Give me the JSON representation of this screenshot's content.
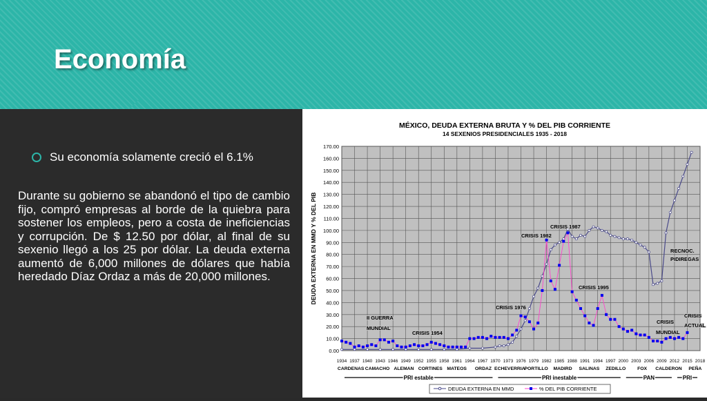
{
  "slide": {
    "title": "Economía",
    "bullet": "Su economía solamente creció el 6.1%",
    "body": "Durante su gobierno se abandonó el tipo de cambio fijo, compró empresas al borde de la quiebra para sostener los empleos, pero a costa de ineficiencias y corrupción. De $ 12.50 por dólar, al final de su sexenio llegó a los 25 por dólar. La deuda externa aumentó de 6,000 millones de dólares que había heredado Díaz Ordaz a más de 20,000 millones."
  },
  "colors": {
    "header": "#2cb5a8",
    "dark": "#2b2b2b",
    "plot_bg": "#c0c0c0",
    "series_debt": "#4a4a8a",
    "series_pib": "#0000ee",
    "pib_line": "#ff44cc"
  },
  "chart_data": {
    "type": "line",
    "title": "MÉXICO, DEUDA EXTERNA BRUTA Y % DEL PIB CORRIENTE",
    "subtitle": "14 SEXENIOS PRESIDENCIALES  1935 - 2018",
    "ylabel": "DEUDA EXTERNA EN MMD Y % DEL PIB",
    "ylim": [
      0,
      170
    ],
    "y_ticks": [
      "0.00",
      "10.00",
      "20.00",
      "30.00",
      "40.00",
      "50.00",
      "60.00",
      "70.00",
      "80.00",
      "90.00",
      "100.00",
      "110.00",
      "120.00",
      "130.00",
      "140.00",
      "150.00",
      "160.00",
      "170.00"
    ],
    "x_ticks": [
      "1934",
      "1937",
      "1940",
      "1943",
      "1946",
      "1949",
      "1952",
      "1955",
      "1958",
      "1961",
      "1964",
      "1967",
      "1970",
      "1973",
      "1976",
      "1979",
      "1982",
      "1985",
      "1988",
      "1991",
      "1994",
      "1997",
      "2000",
      "2003",
      "2006",
      "2009",
      "2012",
      "2015",
      "2018"
    ],
    "xlim": [
      1934,
      2018
    ],
    "grid": true,
    "presidents": [
      "CARDENAS",
      "CAMACHO",
      "ALEMAN",
      "CORTINES",
      "MATEOS",
      "ORDAZ",
      "ECHEVERRIA",
      "PORTILLO",
      "MADIRD",
      "SALINAS",
      "ZEDILLO",
      "FOX",
      "CALDERON",
      "PEÑA"
    ],
    "periods": [
      "PRI estable",
      "PRI inestable",
      "PAN",
      "PRI"
    ],
    "annotations": [
      "II GUERRA",
      "MUNDIAL",
      "CRISIS 1954",
      "CRISIS 1976",
      "CRISIS 1982",
      "CRISIS 1987",
      "CRISIS 1995",
      "RECNOC.",
      "PIDIREGAS",
      "CRISIS",
      "MUNDIAL",
      "CRISIS",
      "ACTUAL"
    ],
    "legend": [
      "DEUDA EXTERNA EN MMD",
      "% DEL PIB CORRIENTE"
    ],
    "legend_position": "bottom",
    "series": [
      {
        "name": "DEUDA EXTERNA EN MMD",
        "x": [
          1934,
          1937,
          1940,
          1943,
          1946,
          1949,
          1952,
          1955,
          1958,
          1961,
          1964,
          1967,
          1970,
          1971,
          1972,
          1973,
          1974,
          1975,
          1976,
          1977,
          1978,
          1979,
          1980,
          1981,
          1982,
          1983,
          1984,
          1985,
          1986,
          1987,
          1988,
          1989,
          1990,
          1991,
          1992,
          1993,
          1994,
          1995,
          1996,
          1997,
          1998,
          1999,
          2000,
          2001,
          2002,
          2003,
          2004,
          2005,
          2006,
          2007,
          2008,
          2009,
          2010,
          2011,
          2012,
          2013,
          2014,
          2015,
          2016
        ],
        "values": [
          1,
          1,
          1,
          1,
          1,
          1,
          1,
          1,
          1,
          1,
          2,
          2,
          3,
          4,
          4,
          5,
          7,
          12,
          18,
          25,
          35,
          45,
          52,
          62,
          72,
          84,
          88,
          90,
          93,
          101,
          95,
          93,
          96,
          95,
          100,
          103,
          102,
          100,
          99,
          96,
          95,
          94,
          93,
          93,
          92,
          90,
          88,
          86,
          82,
          55,
          56,
          58,
          98,
          115,
          125,
          135,
          145,
          155,
          165
        ]
      },
      {
        "name": "% DEL PIB CORRIENTE",
        "x": [
          1934,
          1935,
          1936,
          1937,
          1938,
          1939,
          1940,
          1941,
          1942,
          1943,
          1944,
          1945,
          1946,
          1947,
          1948,
          1949,
          1950,
          1951,
          1952,
          1953,
          1954,
          1955,
          1956,
          1957,
          1958,
          1959,
          1960,
          1961,
          1962,
          1963,
          1964,
          1965,
          1966,
          1967,
          1968,
          1969,
          1970,
          1971,
          1972,
          1973,
          1974,
          1975,
          1976,
          1977,
          1978,
          1979,
          1980,
          1981,
          1982,
          1983,
          1984,
          1985,
          1986,
          1987,
          1988,
          1989,
          1990,
          1991,
          1992,
          1993,
          1994,
          1995,
          1996,
          1997,
          1998,
          1999,
          2000,
          2001,
          2002,
          2003,
          2004,
          2005,
          2006,
          2007,
          2008,
          2009,
          2010,
          2011,
          2012,
          2013,
          2014,
          2015
        ],
        "values": [
          8,
          7,
          6,
          3,
          4,
          3,
          4,
          5,
          4,
          9,
          9,
          7,
          8,
          4,
          3,
          3,
          4,
          5,
          4,
          4,
          5,
          7,
          6,
          5,
          4,
          3,
          3,
          3,
          3,
          3,
          10,
          10,
          11,
          11,
          10,
          12,
          11,
          11,
          11,
          10,
          13,
          17,
          29,
          28,
          24,
          18,
          23,
          50,
          92,
          58,
          51,
          71,
          91,
          98,
          49,
          42,
          35,
          29,
          23,
          21,
          35,
          46,
          30,
          26,
          26,
          20,
          18,
          16,
          17,
          14,
          13,
          13,
          11,
          8,
          8,
          7,
          10,
          11,
          10,
          11,
          10,
          15
        ]
      }
    ]
  }
}
